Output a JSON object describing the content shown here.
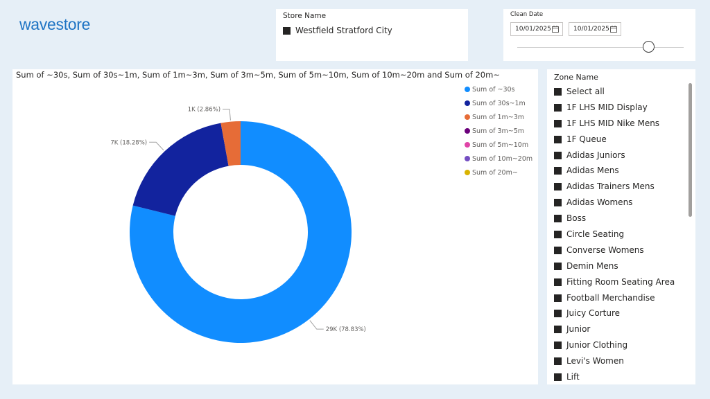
{
  "logo": "wavestore",
  "store_slicer": {
    "title": "Store Name",
    "item": "Westfield Stratford City"
  },
  "date_slicer": {
    "title": "Clean Date",
    "start": "10/01/2025",
    "end": "10/01/2025",
    "slider_position": 0.8
  },
  "zone_slicer": {
    "title": "Zone Name",
    "items": [
      "Select all",
      "1F LHS MID Display",
      "1F LHS MID Nike Mens",
      "1F Queue",
      "Adidas Juniors",
      "Adidas Mens",
      "Adidas Trainers Mens",
      "Adidas Womens",
      "Boss",
      "Circle Seating",
      "Converse Womens",
      "Demin Mens",
      "Fitting Room Seating Area",
      "Football Merchandise",
      "Juicy Corture",
      "Junior",
      "Junior Clothing",
      "Levi's Women",
      "Lift"
    ]
  },
  "colors": {
    "accent": "#1f74c4",
    "background": "#e6eff7"
  },
  "chart_data": {
    "type": "pie",
    "title": "Sum of ~30s, Sum of 30s~1m, Sum of 1m~3m, Sum of 3m~5m, Sum of 5m~10m, Sum of 10m~20m and Sum of 20m~",
    "donut": true,
    "legend_position": "top-right",
    "series": [
      {
        "name": "Sum of ~30s",
        "value": 78.83,
        "color": "#118dff",
        "label": "29K (78.83%)"
      },
      {
        "name": "Sum of 30s~1m",
        "value": 18.28,
        "color": "#12239e",
        "label": "7K (18.28%)"
      },
      {
        "name": "Sum of 1m~3m",
        "value": 2.86,
        "color": "#e66c37",
        "label": "1K (2.86%)"
      },
      {
        "name": "Sum of 3m~5m",
        "value": 0,
        "color": "#6b007b",
        "label": ""
      },
      {
        "name": "Sum of 5m~10m",
        "value": 0,
        "color": "#e044a7",
        "label": ""
      },
      {
        "name": "Sum of 10m~20m",
        "value": 0,
        "color": "#744ec2",
        "label": ""
      },
      {
        "name": "Sum of 20m~",
        "value": 0,
        "color": "#d9b300",
        "label": ""
      }
    ]
  }
}
